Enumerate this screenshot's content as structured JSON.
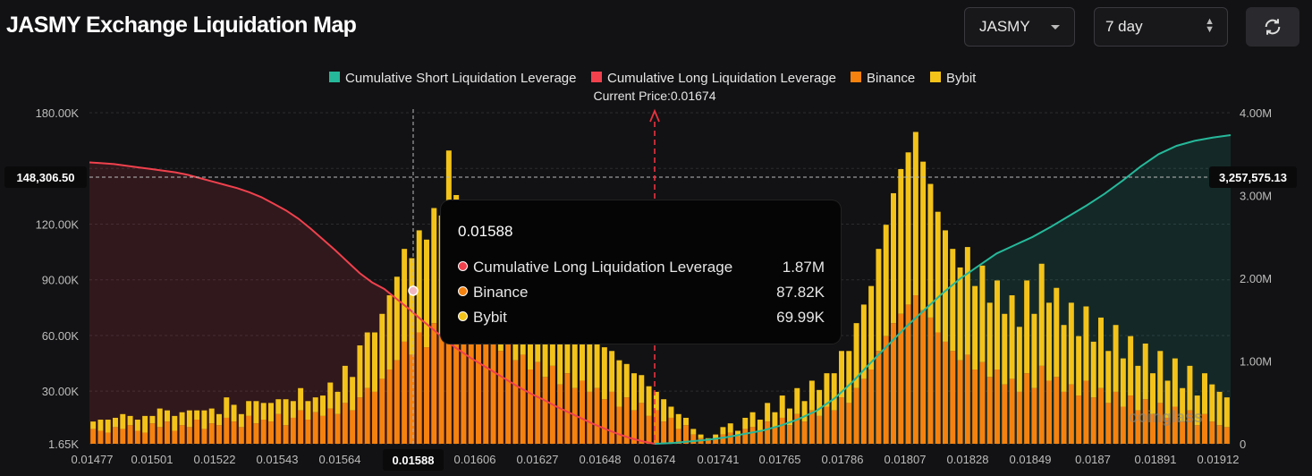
{
  "header": {
    "title": "JASMY Exchange Liquidation Map",
    "coin_select": "JASMY",
    "period_select": "7 day"
  },
  "colors": {
    "short": "#26b89a",
    "long": "#f0414d",
    "binance": "#f5820f",
    "bybit": "#f3c31a",
    "background": "#121214"
  },
  "tooltip": {
    "title": "0.01588",
    "rows": [
      {
        "label": "Cumulative Long Liquidation Leverage",
        "value": "1.87M",
        "color": "#f0414d"
      },
      {
        "label": "Binance",
        "value": "87.82K",
        "color": "#f5820f"
      },
      {
        "label": "Bybit",
        "value": "69.99K",
        "color": "#f3c31a"
      }
    ]
  },
  "chart_data": {
    "type": "bar",
    "title": "",
    "legend": [
      "Cumulative Short Liquidation Leverage",
      "Cumulative Long Liquidation Leverage",
      "Binance",
      "Bybit"
    ],
    "legend_position": "top-center",
    "current_price_label": "Current Price:0.01674",
    "current_price": 0.01674,
    "crosshair": {
      "x_label": "0.01588",
      "left_label": "148,306.50",
      "right_label": "3,257,575.13"
    },
    "y_left": {
      "ticks": [
        "1.65K",
        "30.00K",
        "60.00K",
        "90.00K",
        "120.00K",
        "180.00K"
      ],
      "range": [
        1650,
        180000
      ]
    },
    "y_right": {
      "ticks": [
        "0",
        "1.00M",
        "2.00M",
        "3.00M",
        "4.00M"
      ],
      "range": [
        0,
        4000000
      ]
    },
    "x_ticks": [
      "0.01477",
      "0.01501",
      "0.01522",
      "0.01543",
      "0.01564",
      "0.01588",
      "0.01606",
      "0.01627",
      "0.01648",
      "0.01674",
      "0.01741",
      "0.01765",
      "0.01786",
      "0.01807",
      "0.01828",
      "0.01849",
      "0.0187",
      "0.01891",
      "0.01912"
    ],
    "watermark": "coinglass",
    "binance": [
      8,
      7,
      6,
      9,
      8,
      10,
      7,
      6,
      11,
      9,
      12,
      7,
      10,
      9,
      13,
      8,
      11,
      10,
      14,
      12,
      9,
      15,
      11,
      13,
      12,
      16,
      10,
      14,
      18,
      13,
      17,
      15,
      19,
      16,
      22,
      18,
      25,
      30,
      28,
      35,
      40,
      45,
      55,
      48,
      60,
      52,
      65,
      58,
      88,
      62,
      70,
      66,
      75,
      58,
      64,
      50,
      55,
      45,
      48,
      40,
      44,
      36,
      42,
      32,
      38,
      30,
      34,
      28,
      30,
      24,
      28,
      20,
      25,
      18,
      22,
      15,
      18,
      12,
      14,
      8,
      10,
      5,
      3,
      2,
      3,
      5,
      6,
      4,
      8,
      9,
      7,
      12,
      9,
      14,
      10,
      16,
      12,
      18,
      15,
      20,
      18,
      25,
      22,
      30,
      35,
      40,
      50,
      58,
      65,
      70,
      75,
      80,
      72,
      68,
      60,
      55,
      50,
      45,
      48,
      40,
      44,
      36,
      40,
      32,
      35,
      28,
      38,
      30,
      42,
      34,
      36,
      28,
      32,
      26,
      34,
      25,
      30,
      22,
      28,
      20,
      26,
      18,
      24,
      16,
      22,
      14,
      20,
      12,
      18,
      10,
      16,
      12,
      10,
      9
    ],
    "bybit": [
      4,
      6,
      7,
      5,
      8,
      5,
      6,
      9,
      4,
      10,
      6,
      8,
      7,
      9,
      5,
      10,
      8,
      6,
      11,
      9,
      7,
      8,
      12,
      9,
      10,
      8,
      14,
      9,
      12,
      10,
      8,
      11,
      14,
      12,
      20,
      18,
      28,
      30,
      32,
      35,
      40,
      45,
      50,
      52,
      55,
      58,
      62,
      65,
      70,
      72,
      60,
      55,
      52,
      56,
      48,
      45,
      40,
      42,
      38,
      40,
      36,
      38,
      34,
      36,
      30,
      32,
      28,
      30,
      26,
      28,
      22,
      25,
      18,
      20,
      15,
      16,
      10,
      12,
      6,
      8,
      4,
      3,
      2,
      1,
      2,
      4,
      5,
      3,
      6,
      8,
      6,
      10,
      8,
      12,
      9,
      14,
      11,
      16,
      14,
      18,
      20,
      25,
      28,
      35,
      40,
      45,
      55,
      60,
      70,
      78,
      82,
      88,
      80,
      72,
      65,
      60,
      55,
      50,
      58,
      45,
      52,
      40,
      48,
      38,
      45,
      35,
      50,
      40,
      55,
      42,
      48,
      36,
      44,
      32,
      40,
      30,
      38,
      28,
      36,
      26,
      32,
      24,
      30,
      22,
      28,
      20,
      26,
      18,
      24,
      16,
      22,
      20,
      18,
      16
    ],
    "long_cumulative": [
      3.4,
      3.39,
      3.38,
      3.36,
      3.34,
      3.32,
      3.3,
      3.28,
      3.25,
      3.21,
      3.17,
      3.13,
      3.09,
      3.04,
      2.98,
      2.9,
      2.82,
      2.72,
      2.6,
      2.47,
      2.34,
      2.2,
      2.06,
      1.95,
      1.87,
      1.75,
      1.63,
      1.5,
      1.38,
      1.25,
      1.14,
      1.04,
      0.95,
      0.86,
      0.77,
      0.68,
      0.6,
      0.53,
      0.45,
      0.38,
      0.31,
      0.24,
      0.18,
      0.12,
      0.07,
      0.03,
      0.0
    ],
    "short_cumulative": [
      0.0,
      0.01,
      0.03,
      0.05,
      0.08,
      0.12,
      0.16,
      0.22,
      0.3,
      0.4,
      0.55,
      0.75,
      0.98,
      1.2,
      1.42,
      1.62,
      1.82,
      2.0,
      2.15,
      2.3,
      2.4,
      2.5,
      2.62,
      2.75,
      2.88,
      3.02,
      3.18,
      3.35,
      3.5,
      3.6,
      3.66,
      3.7,
      3.73
    ]
  }
}
